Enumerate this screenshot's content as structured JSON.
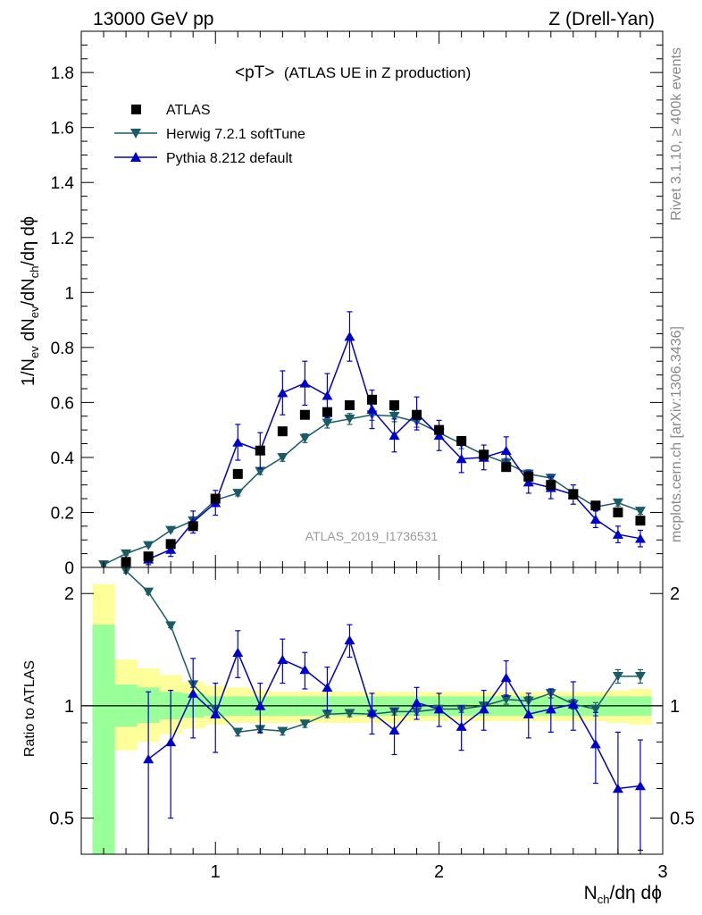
{
  "header": {
    "left": "13000 GeV pp",
    "right": "Z (Drell-Yan)"
  },
  "title": {
    "main": "<pT>",
    "sub": "(ATLAS UE in Z production)"
  },
  "side_labels": {
    "rivet": "Rivet 3.1.10, ≥ 400k events",
    "mcplots": "mcplots.cern.ch [arXiv:1306.3436]"
  },
  "watermark": "ATLAS_2019_I1736531",
  "legend": {
    "atlas": "ATLAS",
    "herwig": "Herwig 7.2.1 softTune",
    "pythia": "Pythia 8.212 default"
  },
  "colors": {
    "data": "#000000",
    "herwig": "#1a5c66",
    "pythia": "#0000cc",
    "band_inner": "#99ff99",
    "band_outer": "#ffff99"
  },
  "axes": {
    "upper_ylabel_parts": [
      "1/N",
      "ev",
      " dN",
      "ev",
      "/dN",
      "ch",
      "/dη dϕ"
    ],
    "lower_ylabel": "Ratio to ATLAS",
    "xlabel_parts": [
      "N",
      "ch",
      "/dη dϕ"
    ]
  },
  "chart_data": [
    {
      "type": "scatter",
      "panel": "main",
      "xlim": [
        0.4,
        3.0
      ],
      "ylim": [
        0,
        1.95
      ],
      "yticks": [
        0,
        0.2,
        0.4,
        0.6,
        0.8,
        1,
        1.2,
        1.4,
        1.6,
        1.8
      ],
      "ytick_labels": [
        "0",
        "0.2",
        "0.4",
        "0.6",
        "0.8",
        "1",
        "1.2",
        "1.4",
        "1.6",
        "1.8"
      ],
      "series": [
        {
          "name": "ATLAS",
          "marker": "square",
          "x": [
            0.6,
            0.7,
            0.8,
            0.9,
            1.0,
            1.1,
            1.2,
            1.3,
            1.4,
            1.5,
            1.6,
            1.7,
            1.8,
            1.9,
            2.0,
            2.1,
            2.2,
            2.3,
            2.4,
            2.5,
            2.6,
            2.7,
            2.8,
            2.9
          ],
          "y": [
            0.02,
            0.04,
            0.085,
            0.15,
            0.25,
            0.34,
            0.425,
            0.495,
            0.555,
            0.565,
            0.59,
            0.61,
            0.59,
            0.555,
            0.5,
            0.46,
            0.41,
            0.365,
            0.33,
            0.3,
            0.265,
            0.225,
            0.2,
            0.17
          ]
        },
        {
          "name": "Herwig 7.2.1 softTune",
          "marker": "triangle-down",
          "x": [
            0.5,
            0.6,
            0.7,
            0.8,
            0.9,
            1.0,
            1.1,
            1.2,
            1.3,
            1.4,
            1.5,
            1.6,
            1.7,
            1.8,
            1.9,
            2.0,
            2.1,
            2.2,
            2.3,
            2.4,
            2.5,
            2.6,
            2.7,
            2.8,
            2.9
          ],
          "y": [
            0.01,
            0.05,
            0.08,
            0.135,
            0.17,
            0.245,
            0.27,
            0.35,
            0.4,
            0.47,
            0.525,
            0.54,
            0.555,
            0.55,
            0.53,
            0.49,
            0.45,
            0.41,
            0.38,
            0.34,
            0.325,
            0.27,
            0.22,
            0.235,
            0.205
          ],
          "err": [
            0.005,
            0.005,
            0.005,
            0.005,
            0.006,
            0.008,
            0.01,
            0.012,
            0.014,
            0.016,
            0.018,
            0.02,
            0.02,
            0.02,
            0.02,
            0.02,
            0.018,
            0.016,
            0.016,
            0.015,
            0.014,
            0.013,
            0.012,
            0.012,
            0.012
          ]
        },
        {
          "name": "Pythia 8.212 default",
          "marker": "triangle-up",
          "x": [
            0.7,
            0.8,
            0.9,
            1.0,
            1.1,
            1.2,
            1.3,
            1.4,
            1.5,
            1.6,
            1.7,
            1.8,
            1.9,
            2.0,
            2.1,
            2.2,
            2.3,
            2.4,
            2.5,
            2.6,
            2.7,
            2.8,
            2.9
          ],
          "y": [
            0.03,
            0.065,
            0.165,
            0.235,
            0.455,
            0.425,
            0.635,
            0.67,
            0.625,
            0.84,
            0.575,
            0.48,
            0.56,
            0.48,
            0.395,
            0.4,
            0.425,
            0.31,
            0.29,
            0.265,
            0.175,
            0.12,
            0.105
          ],
          "err": [
            0.02,
            0.025,
            0.04,
            0.045,
            0.065,
            0.065,
            0.08,
            0.08,
            0.08,
            0.09,
            0.07,
            0.06,
            0.06,
            0.055,
            0.05,
            0.045,
            0.05,
            0.04,
            0.04,
            0.035,
            0.03,
            0.03,
            0.03
          ]
        }
      ]
    },
    {
      "type": "line",
      "panel": "ratio",
      "xlim": [
        0.4,
        3.0
      ],
      "ylim": [
        0.4,
        2.35
      ],
      "xticks": [
        1,
        2,
        3
      ],
      "xtick_labels": [
        "1",
        "2",
        "3"
      ],
      "yticks": [
        0.5,
        1,
        2
      ],
      "ytick_labels": [
        "0.5",
        "1",
        "2"
      ],
      "reference_line": 1,
      "bands": {
        "edges": [
          0.45,
          0.55,
          0.65,
          0.75,
          0.85,
          0.95,
          1.05,
          1.15,
          1.25,
          1.35,
          1.45,
          1.55,
          1.65,
          1.75,
          1.85,
          1.95,
          2.05,
          2.15,
          2.25,
          2.35,
          2.45,
          2.55,
          2.65,
          2.75,
          2.85,
          2.95
        ],
        "inner_lo": [
          0.33,
          0.88,
          0.9,
          0.92,
          0.93,
          0.94,
          0.94,
          0.94,
          0.94,
          0.94,
          0.94,
          0.94,
          0.94,
          0.94,
          0.94,
          0.94,
          0.94,
          0.94,
          0.94,
          0.94,
          0.94,
          0.94,
          0.94,
          0.94,
          0.94
        ],
        "inner_hi": [
          1.65,
          1.14,
          1.12,
          1.09,
          1.08,
          1.06,
          1.06,
          1.06,
          1.06,
          1.06,
          1.06,
          1.06,
          1.06,
          1.06,
          1.06,
          1.06,
          1.06,
          1.06,
          1.06,
          1.06,
          1.06,
          1.06,
          1.06,
          1.06,
          1.06
        ],
        "outer_lo": [
          0.37,
          0.76,
          0.8,
          0.84,
          0.87,
          0.89,
          0.9,
          0.9,
          0.9,
          0.9,
          0.9,
          0.9,
          0.9,
          0.9,
          0.91,
          0.91,
          0.91,
          0.91,
          0.91,
          0.91,
          0.91,
          0.91,
          0.91,
          0.9,
          0.89
        ],
        "outer_hi": [
          2.12,
          1.33,
          1.26,
          1.21,
          1.16,
          1.13,
          1.12,
          1.1,
          1.09,
          1.09,
          1.09,
          1.09,
          1.09,
          1.09,
          1.09,
          1.09,
          1.09,
          1.09,
          1.09,
          1.09,
          1.09,
          1.09,
          1.09,
          1.1,
          1.11
        ]
      },
      "series": [
        {
          "name": "Herwig 7.2.1 softTune",
          "marker": "triangle-down",
          "x": [
            0.6,
            0.7,
            0.8,
            0.9,
            1.0,
            1.1,
            1.2,
            1.3,
            1.4,
            1.5,
            1.6,
            1.7,
            1.8,
            1.9,
            2.0,
            2.1,
            2.2,
            2.3,
            2.4,
            2.5,
            2.6,
            2.7,
            2.8,
            2.9
          ],
          "y": [
            2.3,
            2.02,
            1.64,
            1.14,
            0.98,
            0.85,
            0.865,
            0.855,
            0.895,
            0.95,
            0.955,
            0.95,
            0.965,
            0.965,
            0.98,
            0.98,
            1.0,
            1.04,
            1.03,
            1.08,
            1.01,
            0.98,
            1.2,
            1.2
          ],
          "err": [
            0.03,
            0.03,
            0.02,
            0.02,
            0.02,
            0.02,
            0.02,
            0.02,
            0.02,
            0.02,
            0.02,
            0.02,
            0.02,
            0.02,
            0.02,
            0.02,
            0.02,
            0.03,
            0.03,
            0.03,
            0.03,
            0.04,
            0.05,
            0.05
          ]
        },
        {
          "name": "Pythia 8.212 default",
          "marker": "triangle-up",
          "x": [
            0.7,
            0.8,
            0.9,
            1.0,
            1.1,
            1.2,
            1.3,
            1.4,
            1.5,
            1.6,
            1.7,
            1.8,
            1.9,
            2.0,
            2.1,
            2.2,
            2.3,
            2.4,
            2.5,
            2.6,
            2.7,
            2.8,
            2.9
          ],
          "y": [
            0.72,
            0.8,
            1.08,
            0.95,
            1.39,
            1.0,
            1.33,
            1.25,
            1.12,
            1.5,
            0.96,
            0.86,
            1.02,
            0.98,
            0.88,
            0.98,
            1.19,
            0.95,
            0.98,
            1.01,
            0.79,
            0.6,
            0.61
          ],
          "err": [
            0.37,
            0.3,
            0.26,
            0.2,
            0.2,
            0.15,
            0.18,
            0.14,
            0.15,
            0.15,
            0.12,
            0.12,
            0.1,
            0.1,
            0.12,
            0.12,
            0.13,
            0.13,
            0.13,
            0.15,
            0.17,
            0.25,
            0.2
          ]
        }
      ]
    }
  ]
}
